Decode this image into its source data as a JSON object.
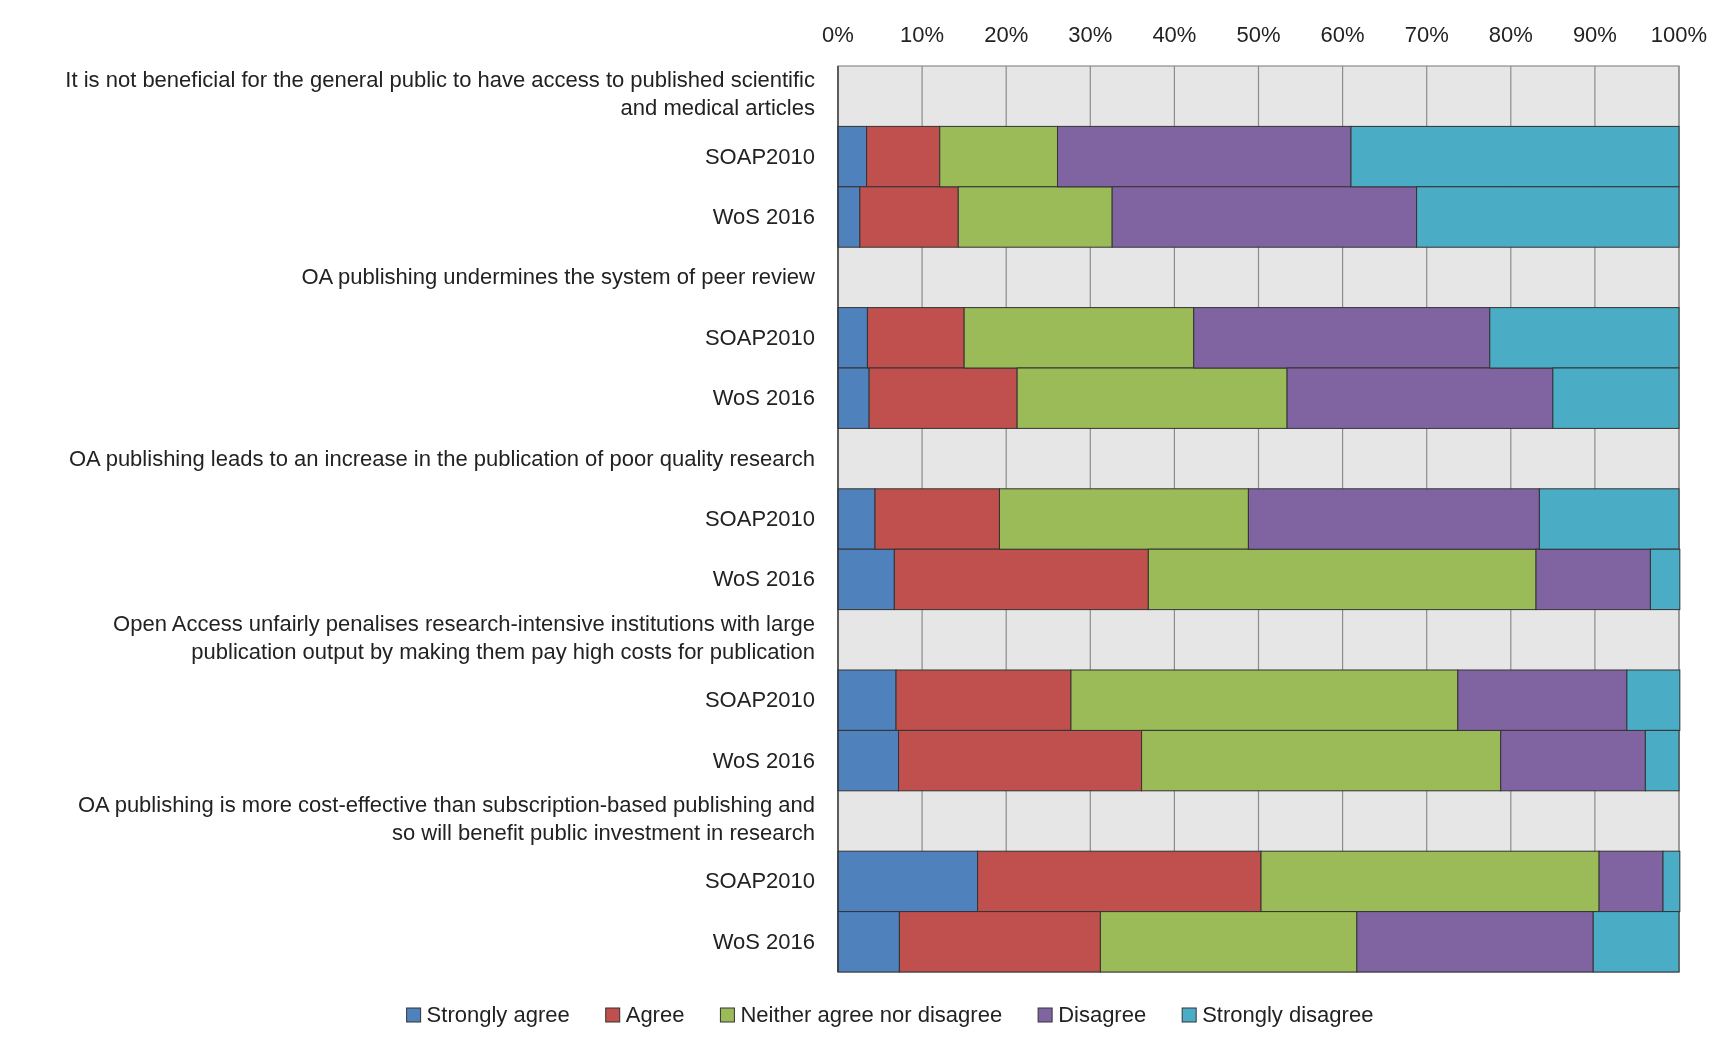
{
  "chart_data": {
    "type": "bar",
    "orientation": "horizontal",
    "stacked": true,
    "categories": [
      "It is not beneficial for the general public to have access to published scientific and medical articles",
      "SOAP2010",
      "WoS 2016",
      "OA publishing undermines the system of peer review",
      "SOAP2010",
      "WoS 2016",
      "OA publishing leads to an increase in the publication of poor quality research",
      "SOAP2010",
      "WoS 2016",
      "Open Access unfairly penalises research-intensive institutions with large publication output by making them pay high costs for publication",
      "SOAP2010",
      "WoS 2016",
      "OA publishing is more cost-effective than subscription-based publishing and so will benefit public investment in research",
      "SOAP2010",
      "WoS 2016"
    ],
    "series": [
      {
        "name": "Strongly agree",
        "color": "#4f81bd",
        "values": [
          null,
          3.4,
          2.6,
          null,
          3.5,
          3.7,
          null,
          4.4,
          6.7,
          null,
          6.9,
          7.2,
          null,
          16.6,
          7.3
        ]
      },
      {
        "name": "Agree",
        "color": "#c0504d",
        "values": [
          null,
          8.7,
          11.7,
          null,
          11.5,
          17.6,
          null,
          14.8,
          30.2,
          null,
          20.8,
          28.9,
          null,
          33.7,
          23.9
        ]
      },
      {
        "name": "Neither agree nor disagree",
        "color": "#9bbb59",
        "values": [
          null,
          14.0,
          18.3,
          null,
          27.3,
          32.1,
          null,
          29.6,
          46.1,
          null,
          46.0,
          42.7,
          null,
          40.2,
          30.5
        ]
      },
      {
        "name": "Disagree",
        "color": "#8064a2",
        "values": [
          null,
          34.9,
          36.2,
          null,
          35.2,
          31.6,
          null,
          34.6,
          13.6,
          null,
          20.1,
          17.2,
          null,
          7.6,
          28.1
        ]
      },
      {
        "name": "Strongly disagree",
        "color": "#4bacc6",
        "values": [
          null,
          39.0,
          31.2,
          null,
          22.5,
          15.0,
          null,
          16.6,
          3.5,
          null,
          6.3,
          4.0,
          null,
          2.0,
          10.2
        ]
      }
    ],
    "xlim": [
      0,
      100
    ],
    "xticks": [
      {
        "value": 0,
        "label": "0%"
      },
      {
        "value": 10,
        "label": "10%"
      },
      {
        "value": 20,
        "label": "20%"
      },
      {
        "value": 30,
        "label": "30%"
      },
      {
        "value": 40,
        "label": "40%"
      },
      {
        "value": 50,
        "label": "50%"
      },
      {
        "value": 60,
        "label": "60%"
      },
      {
        "value": 70,
        "label": "70%"
      },
      {
        "value": 80,
        "label": "80%"
      },
      {
        "value": 90,
        "label": "90%"
      },
      {
        "value": 100,
        "label": "100%"
      }
    ],
    "grid": "x",
    "legend": "bottom"
  }
}
